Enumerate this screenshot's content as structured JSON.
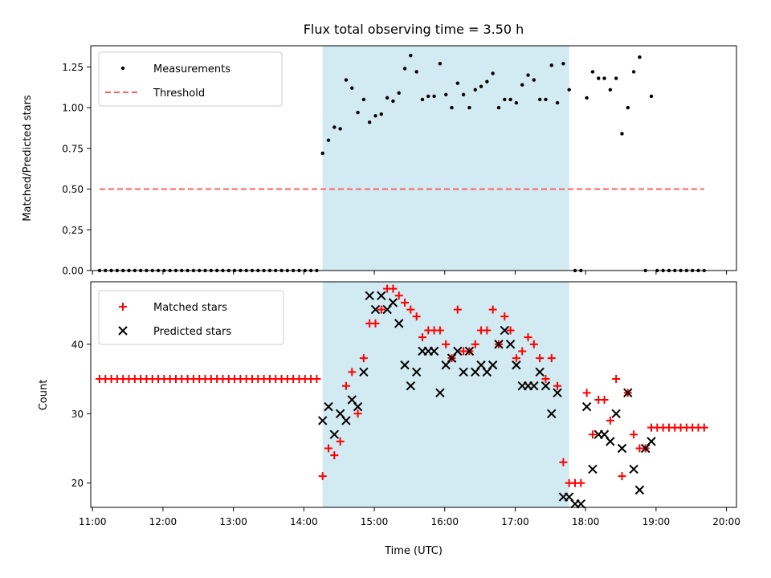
{
  "colors": {
    "window": "#add8e6",
    "threshold": "#ff6060",
    "matched": "#ff0000",
    "predicted": "#000000",
    "measurement": "#000000"
  },
  "chart_data": [
    {
      "type": "scatter",
      "title": "Flux total observing time = 3.50 h",
      "xlabel": "",
      "ylabel": "Matched/Predicted stars",
      "ylim": [
        0,
        1.38
      ],
      "yticks": [
        "0.00",
        "0.25",
        "0.50",
        "0.75",
        "1.00",
        "1.25"
      ],
      "legend": {
        "placement": "top-left"
      },
      "observing_window": [
        "14:16",
        "17:46"
      ],
      "series": [
        {
          "name": "Measurements",
          "marker": "dot",
          "x": [
            "11:06",
            "11:11",
            "11:16",
            "11:21",
            "11:26",
            "11:31",
            "11:36",
            "11:41",
            "11:46",
            "11:51",
            "11:56",
            "12:01",
            "12:06",
            "12:11",
            "12:16",
            "12:21",
            "12:26",
            "12:31",
            "12:36",
            "12:41",
            "12:46",
            "12:51",
            "12:56",
            "13:01",
            "13:06",
            "13:11",
            "13:16",
            "13:21",
            "13:26",
            "13:31",
            "13:36",
            "13:41",
            "13:46",
            "13:51",
            "13:56",
            "14:01",
            "14:06",
            "14:11",
            "14:16",
            "14:21",
            "14:26",
            "14:31",
            "14:36",
            "14:41",
            "14:46",
            "14:51",
            "14:56",
            "15:01",
            "15:06",
            "15:11",
            "15:16",
            "15:21",
            "15:26",
            "15:31",
            "15:36",
            "15:41",
            "15:46",
            "15:51",
            "15:56",
            "16:01",
            "16:06",
            "16:11",
            "16:16",
            "16:21",
            "16:26",
            "16:31",
            "16:36",
            "16:41",
            "16:46",
            "16:51",
            "16:56",
            "17:01",
            "17:06",
            "17:11",
            "17:16",
            "17:21",
            "17:26",
            "17:31",
            "17:36",
            "17:41",
            "17:46",
            "17:51",
            "17:56",
            "18:01",
            "18:06",
            "18:11",
            "18:16",
            "18:21",
            "18:26",
            "18:31",
            "18:36",
            "18:41",
            "18:46",
            "18:51",
            "18:56",
            "19:01",
            "19:06",
            "19:11",
            "19:16",
            "19:21",
            "19:26",
            "19:31",
            "19:36",
            "19:41"
          ],
          "y": [
            0,
            0,
            0,
            0,
            0,
            0,
            0,
            0,
            0,
            0,
            0,
            0,
            0,
            0,
            0,
            0,
            0,
            0,
            0,
            0,
            0,
            0,
            0,
            0,
            0,
            0,
            0,
            0,
            0,
            0,
            0,
            0,
            0,
            0,
            0,
            0,
            0,
            0,
            0.72,
            0.8,
            0.88,
            0.87,
            1.17,
            1.12,
            0.97,
            1.05,
            0.91,
            0.95,
            0.96,
            1.06,
            1.04,
            1.09,
            1.24,
            1.32,
            1.22,
            1.05,
            1.07,
            1.07,
            1.27,
            1.08,
            1.0,
            1.15,
            1.08,
            1.0,
            1.11,
            1.13,
            1.16,
            1.21,
            1.0,
            1.05,
            1.05,
            1.03,
            1.14,
            1.2,
            1.17,
            1.05,
            1.05,
            1.26,
            1.03,
            1.27,
            1.11,
            0,
            0,
            1.06,
            1.22,
            1.18,
            1.18,
            1.11,
            1.18,
            0.84,
            1.0,
            1.22,
            1.31,
            0,
            1.07,
            0,
            0,
            0,
            0,
            0,
            0,
            0,
            0,
            0
          ]
        },
        {
          "name": "Threshold",
          "style": "dashed",
          "x": [
            "11:06",
            "19:41"
          ],
          "y": [
            0.5,
            0.5
          ]
        }
      ]
    },
    {
      "type": "scatter",
      "title": "",
      "xlabel": "Time (UTC)",
      "ylabel": "Count",
      "ylim": [
        16.5,
        49
      ],
      "yticks": [
        "20",
        "30",
        "40"
      ],
      "xticks": [
        "11:00",
        "12:00",
        "13:00",
        "14:00",
        "15:00",
        "16:00",
        "17:00",
        "18:00",
        "19:00",
        "20:00"
      ],
      "legend": {
        "placement": "top-left"
      },
      "observing_window": [
        "14:16",
        "17:46"
      ],
      "series": [
        {
          "name": "Matched stars",
          "marker": "plus",
          "x": [
            "11:06",
            "11:11",
            "11:16",
            "11:21",
            "11:26",
            "11:31",
            "11:36",
            "11:41",
            "11:46",
            "11:51",
            "11:56",
            "12:01",
            "12:06",
            "12:11",
            "12:16",
            "12:21",
            "12:26",
            "12:31",
            "12:36",
            "12:41",
            "12:46",
            "12:51",
            "12:56",
            "13:01",
            "13:06",
            "13:11",
            "13:16",
            "13:21",
            "13:26",
            "13:31",
            "13:36",
            "13:41",
            "13:46",
            "13:51",
            "13:56",
            "14:01",
            "14:06",
            "14:11",
            "14:16",
            "14:21",
            "14:26",
            "14:31",
            "14:36",
            "14:41",
            "14:46",
            "14:51",
            "14:56",
            "15:01",
            "15:06",
            "15:11",
            "15:16",
            "15:21",
            "15:26",
            "15:31",
            "15:36",
            "15:41",
            "15:46",
            "15:51",
            "15:56",
            "16:01",
            "16:06",
            "16:11",
            "16:16",
            "16:21",
            "16:26",
            "16:31",
            "16:36",
            "16:41",
            "16:46",
            "16:51",
            "16:56",
            "17:01",
            "17:06",
            "17:11",
            "17:16",
            "17:21",
            "17:26",
            "17:31",
            "17:36",
            "17:41",
            "17:46",
            "17:51",
            "17:56",
            "18:01",
            "18:06",
            "18:11",
            "18:16",
            "18:21",
            "18:26",
            "18:31",
            "18:36",
            "18:41",
            "18:46",
            "18:51",
            "18:56",
            "19:01",
            "19:06",
            "19:11",
            "19:16",
            "19:21",
            "19:26",
            "19:31",
            "19:36",
            "19:41"
          ],
          "y": [
            35,
            35,
            35,
            35,
            35,
            35,
            35,
            35,
            35,
            35,
            35,
            35,
            35,
            35,
            35,
            35,
            35,
            35,
            35,
            35,
            35,
            35,
            35,
            35,
            35,
            35,
            35,
            35,
            35,
            35,
            35,
            35,
            35,
            35,
            35,
            35,
            35,
            35,
            21,
            25,
            24,
            26,
            34,
            36,
            30,
            38,
            43,
            43,
            45,
            48,
            48,
            47,
            46,
            45,
            44,
            41,
            42,
            42,
            42,
            40,
            38,
            45,
            39,
            39,
            40,
            42,
            42,
            45,
            40,
            44,
            42,
            38,
            39,
            41,
            40,
            38,
            35,
            38,
            34,
            23,
            20,
            20,
            20,
            33,
            27,
            32,
            32,
            29,
            35,
            21,
            33,
            27,
            25,
            25,
            28,
            28,
            28,
            28,
            28,
            28,
            28,
            28,
            28,
            28
          ]
        },
        {
          "name": "Predicted stars",
          "marker": "x",
          "x": [
            "14:16",
            "14:21",
            "14:26",
            "14:31",
            "14:36",
            "14:41",
            "14:46",
            "14:51",
            "14:56",
            "15:01",
            "15:06",
            "15:11",
            "15:16",
            "15:21",
            "15:26",
            "15:31",
            "15:36",
            "15:41",
            "15:46",
            "15:51",
            "15:56",
            "16:01",
            "16:06",
            "16:11",
            "16:16",
            "16:21",
            "16:26",
            "16:31",
            "16:36",
            "16:41",
            "16:46",
            "16:51",
            "16:56",
            "17:01",
            "17:06",
            "17:11",
            "17:16",
            "17:21",
            "17:26",
            "17:31",
            "17:36",
            "17:41",
            "17:46",
            "17:51",
            "17:56",
            "18:01",
            "18:06",
            "18:11",
            "18:16",
            "18:21",
            "18:26",
            "18:31",
            "18:36",
            "18:41",
            "18:46",
            "18:51",
            "18:56"
          ],
          "y": [
            29,
            31,
            27,
            30,
            29,
            32,
            31,
            36,
            47,
            45,
            47,
            45,
            46,
            43,
            37,
            34,
            36,
            39,
            39,
            39,
            33,
            37,
            38,
            39,
            36,
            39,
            36,
            37,
            36,
            37,
            40,
            42,
            40,
            37,
            34,
            34,
            34,
            36,
            34,
            30,
            33,
            18,
            18,
            17,
            17,
            31,
            22,
            27,
            27,
            26,
            30,
            25,
            33,
            22,
            19,
            25,
            26
          ]
        }
      ]
    }
  ]
}
